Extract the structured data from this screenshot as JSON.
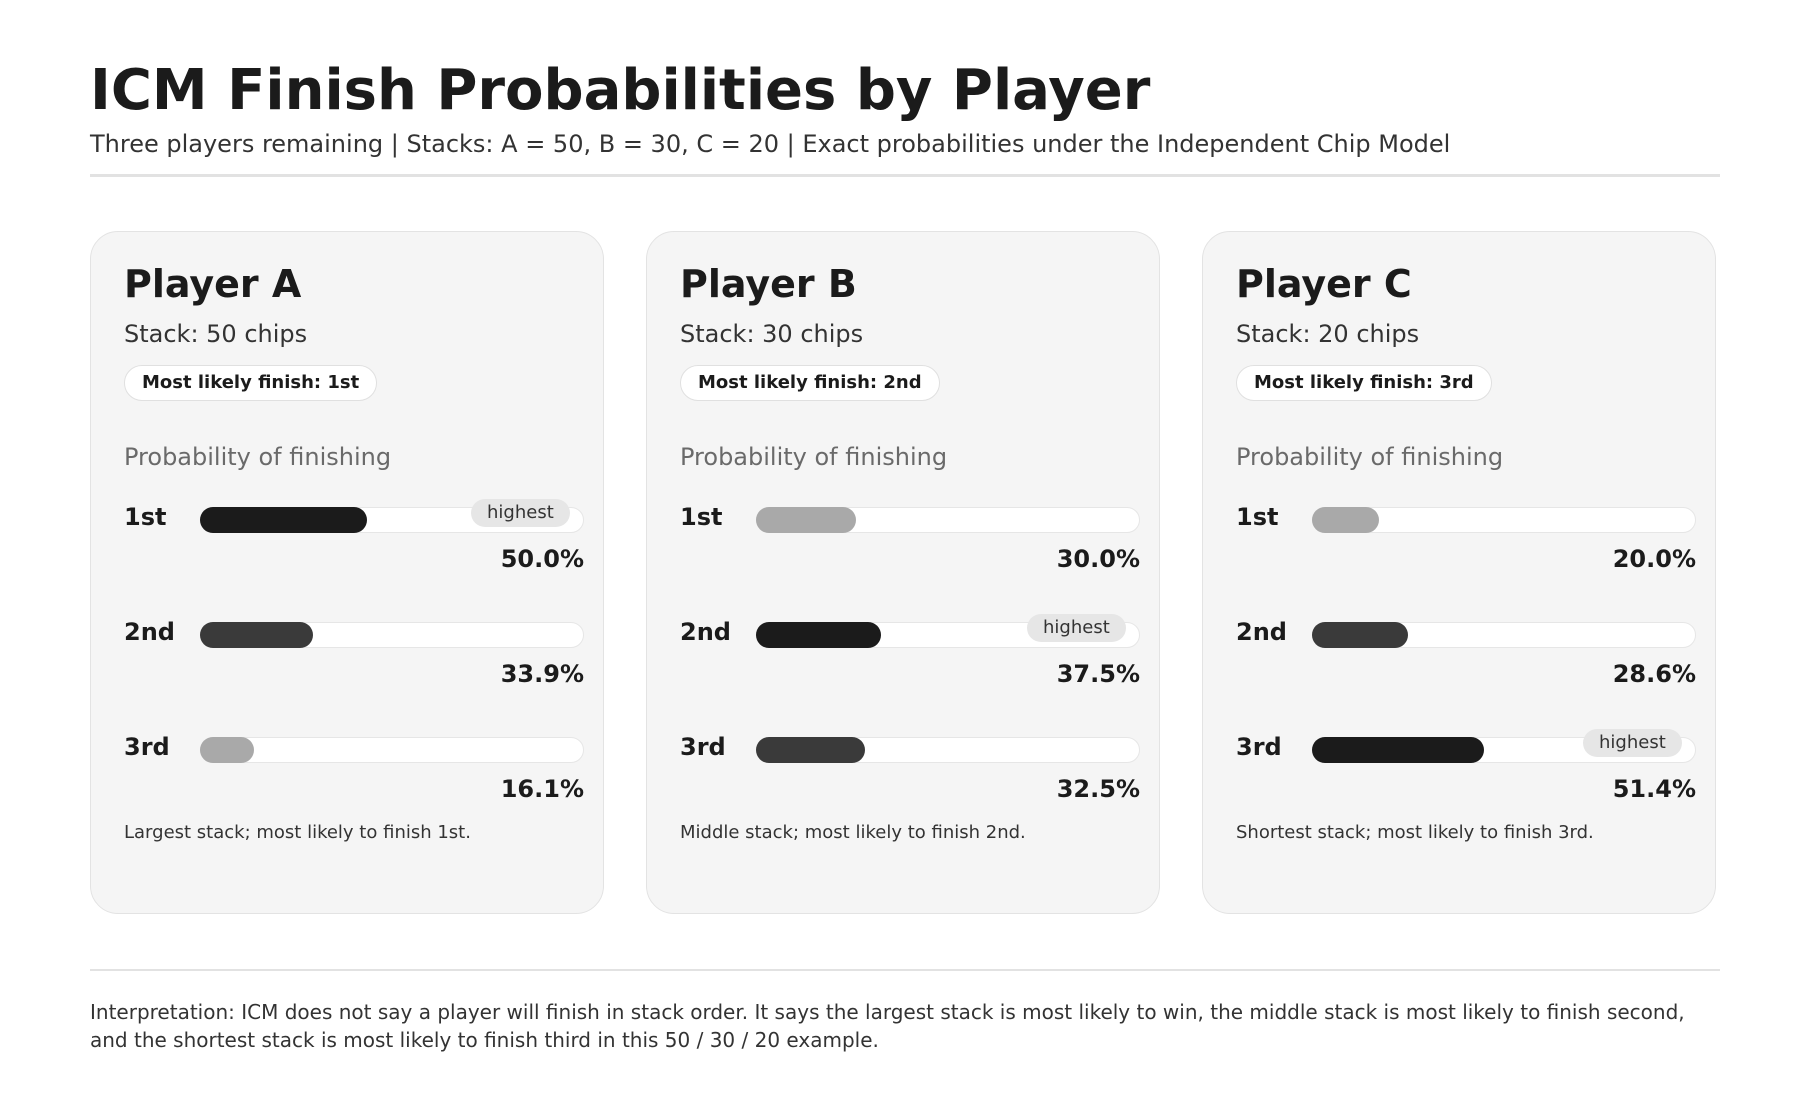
{
  "header": {
    "title": "ICM Finish Probabilities by Player",
    "subtitle": "Three players remaining  |  Stacks: A = 50, B = 30, C = 20  |  Exact probabilities under the Independent Chip Model"
  },
  "prob_label": "Probability of finishing",
  "highest_label": "highest",
  "colors": {
    "card_bg": "#f5f5f5",
    "bar_highest": "#1b1b1b",
    "bar_second": "#3a3a3a",
    "bar_lowest": "#a9a9a9",
    "track": "#ffffff"
  },
  "players": [
    {
      "name": "Player A",
      "stack_text": "Stack: 50 chips",
      "most_likely": "Most likely finish: 1st",
      "note": "Largest stack; most likely to finish 1st.",
      "places": [
        "1st",
        "2nd",
        "3rd"
      ],
      "pcts": [
        "50.0%",
        "33.9%",
        "16.1%"
      ]
    },
    {
      "name": "Player B",
      "stack_text": "Stack: 30 chips",
      "most_likely": "Most likely finish: 2nd",
      "note": "Middle stack; most likely to finish 2nd.",
      "places": [
        "1st",
        "2nd",
        "3rd"
      ],
      "pcts": [
        "30.0%",
        "37.5%",
        "32.5%"
      ]
    },
    {
      "name": "Player C",
      "stack_text": "Stack: 20 chips",
      "most_likely": "Most likely finish: 3rd",
      "note": "Shortest stack; most likely to finish 3rd.",
      "places": [
        "1st",
        "2nd",
        "3rd"
      ],
      "pcts": [
        "20.0%",
        "28.6%",
        "51.4%"
      ]
    }
  ],
  "interpretation": "Interpretation: ICM does not say a player will finish in stack order. It says the largest stack is most likely to win, the middle stack is most likely to finish second, and the shortest stack is most likely to finish third in this 50 / 30 / 20 example.",
  "chart_data": {
    "type": "bar",
    "orientation": "horizontal",
    "title": "ICM Finish Probabilities by Player",
    "categories": [
      "1st",
      "2nd",
      "3rd"
    ],
    "unit": "%",
    "xlim": [
      0,
      100
    ],
    "series": [
      {
        "name": "Player A",
        "values": [
          50.0,
          33.9,
          16.1
        ]
      },
      {
        "name": "Player B",
        "values": [
          30.0,
          37.5,
          32.5
        ]
      },
      {
        "name": "Player C",
        "values": [
          20.0,
          28.6,
          51.4
        ]
      }
    ]
  }
}
